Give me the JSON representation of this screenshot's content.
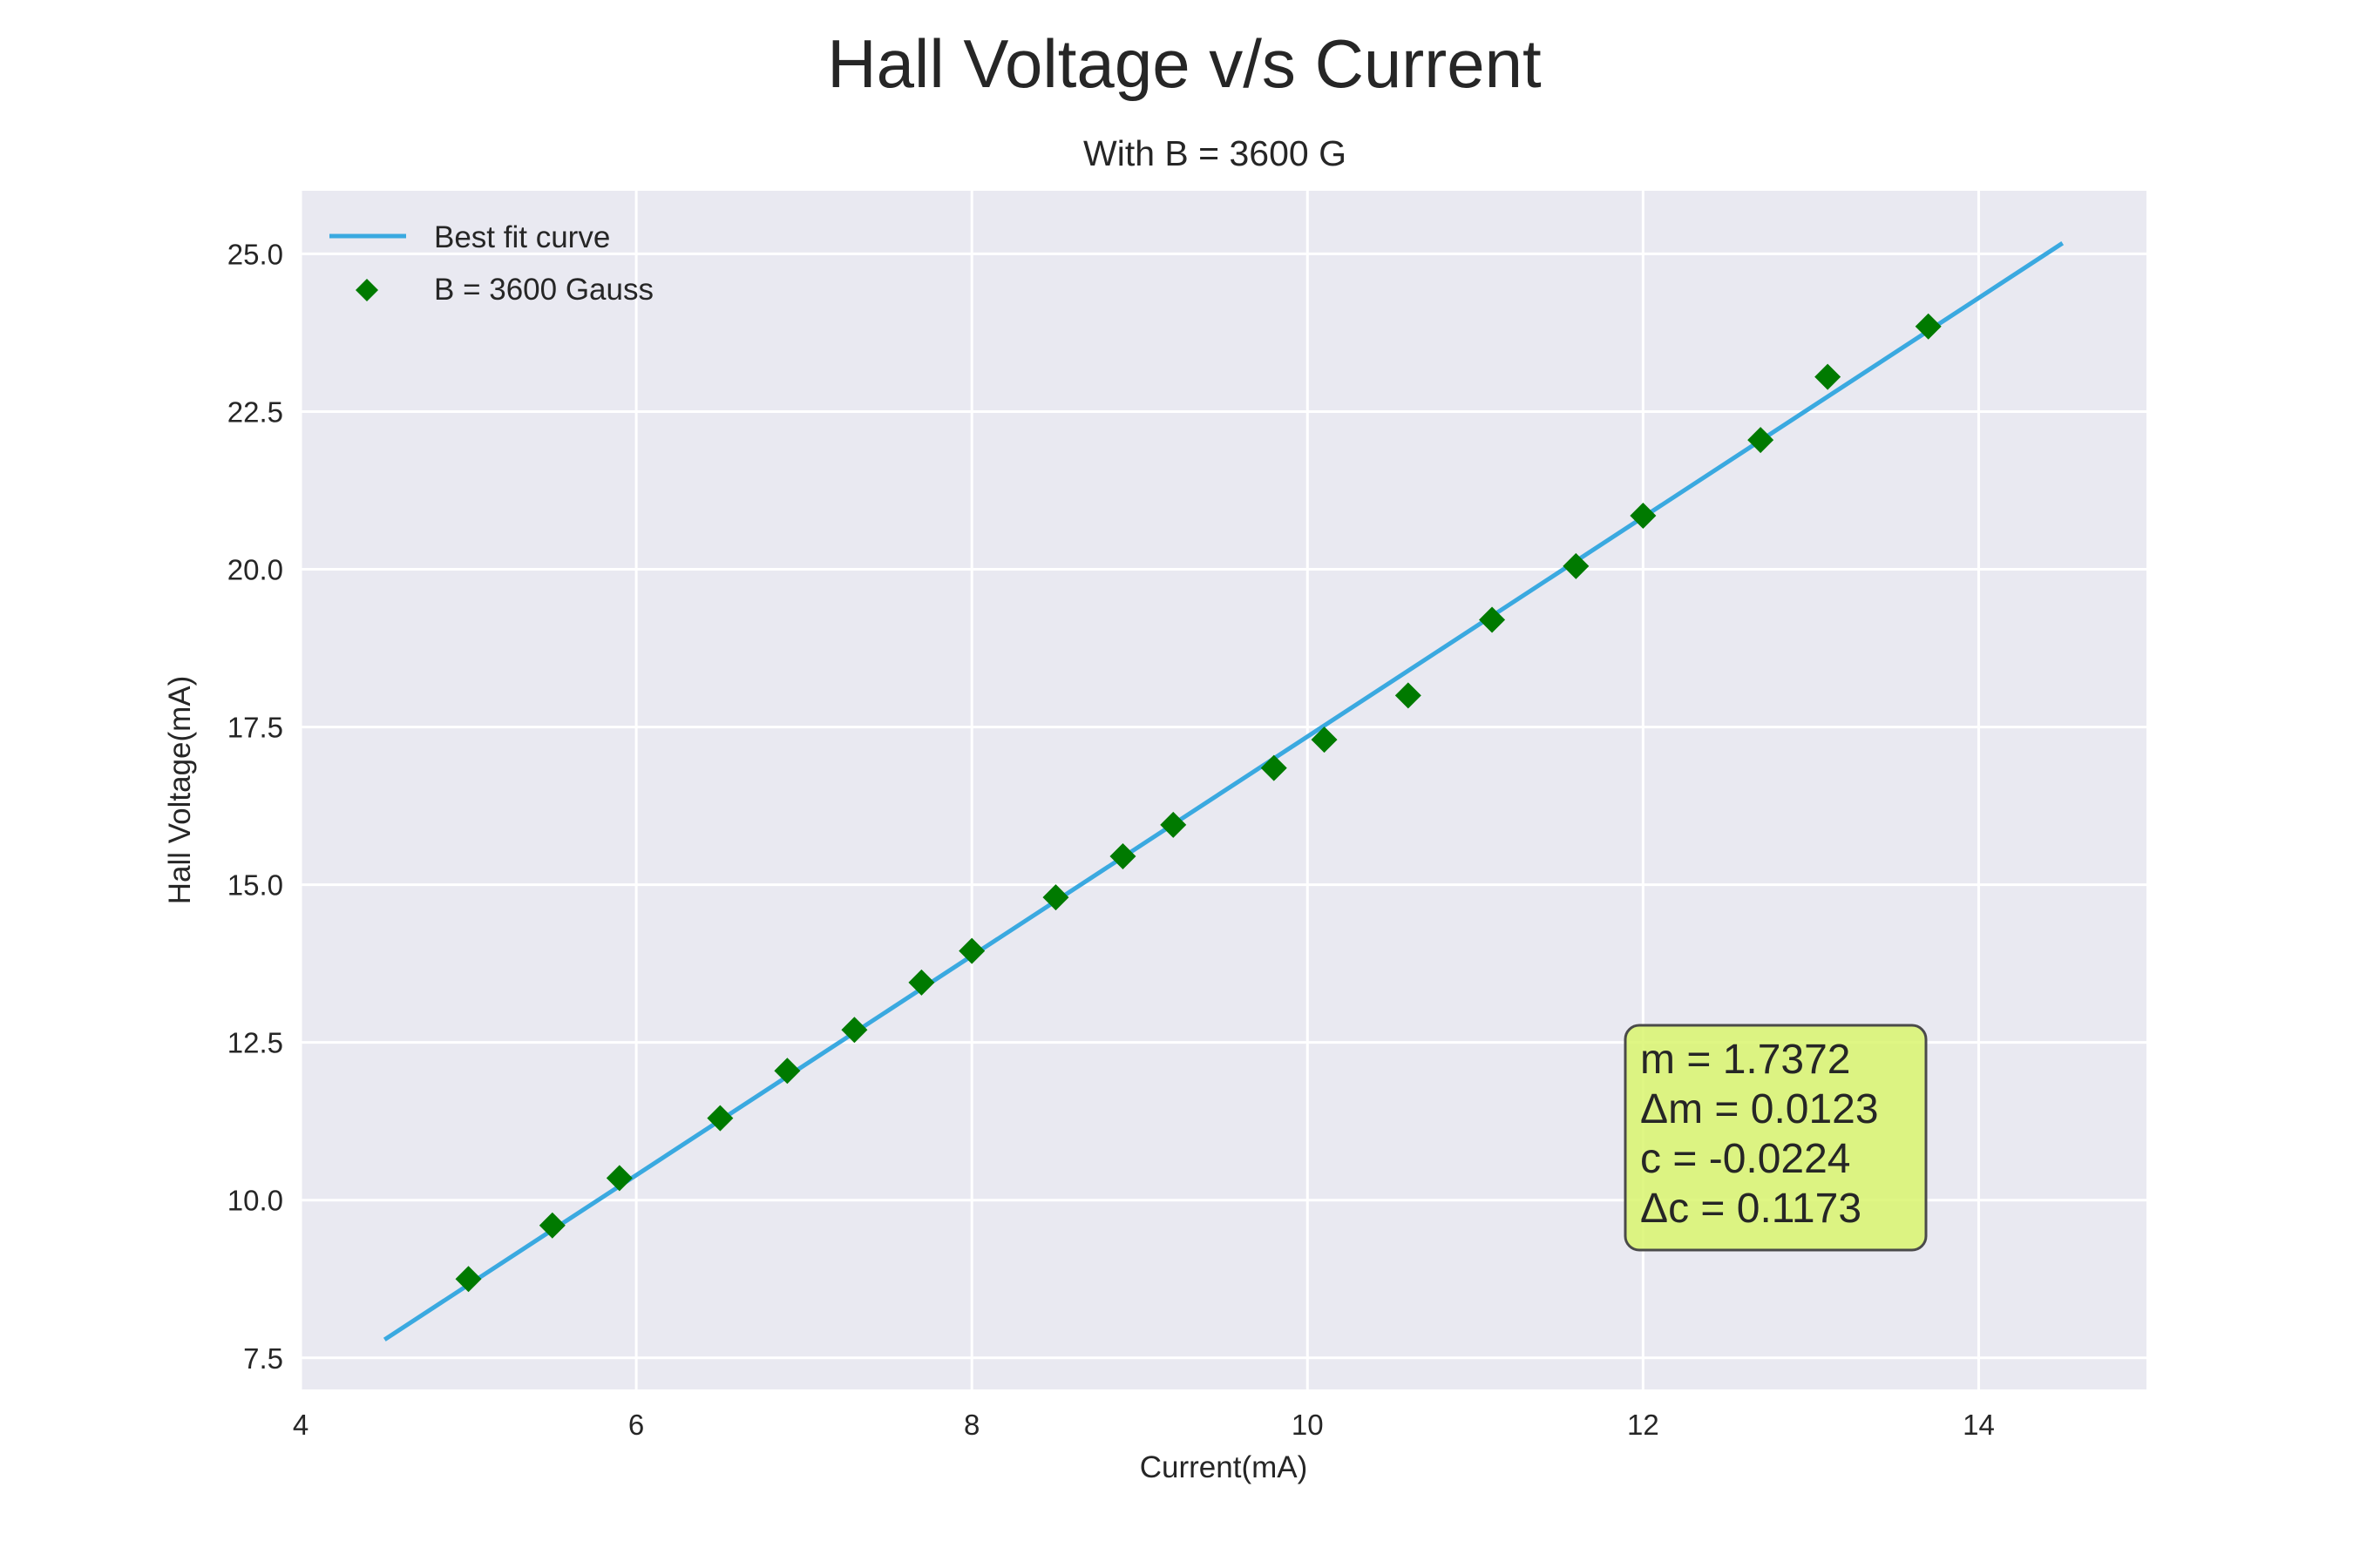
{
  "chart_data": {
    "type": "scatter",
    "suptitle": "Hall Voltage v/s Current",
    "title": "With B = 3600 G",
    "xlabel": "Current(mA)",
    "ylabel": "Hall Voltage(mA)",
    "xlim": [
      4,
      15
    ],
    "ylim": [
      7,
      26
    ],
    "xticks": [
      4,
      6,
      8,
      10,
      12,
      14
    ],
    "xtick_labels": [
      "4",
      "6",
      "8",
      "10",
      "12",
      "14"
    ],
    "yticks": [
      7.5,
      10.0,
      12.5,
      15.0,
      17.5,
      20.0,
      22.5,
      25.0
    ],
    "ytick_labels": [
      "7.5",
      "10.0",
      "12.5",
      "15.0",
      "17.5",
      "20.0",
      "22.5",
      "25.0"
    ],
    "grid": true,
    "legend_position": "top-left",
    "series": [
      {
        "name": "Best fit curve",
        "kind": "line",
        "color": "#3aa9e0",
        "x": [
          4.5,
          14.5
        ],
        "y": [
          7.79,
          25.17
        ]
      },
      {
        "name": "B = 3600 Gauss",
        "kind": "scatter",
        "marker": "diamond",
        "color": "#007a00",
        "x": [
          5.0,
          5.5,
          5.9,
          6.5,
          6.9,
          7.3,
          7.7,
          8.0,
          8.5,
          8.9,
          9.2,
          9.8,
          10.1,
          10.6,
          11.1,
          11.6,
          12.0,
          12.7,
          13.1,
          13.7
        ],
        "y": [
          8.75,
          9.6,
          10.35,
          11.3,
          12.05,
          12.7,
          13.45,
          13.95,
          14.8,
          15.45,
          15.95,
          16.85,
          17.3,
          18.0,
          19.2,
          20.05,
          20.85,
          22.05,
          23.05,
          23.85
        ]
      }
    ],
    "annotation": {
      "lines": [
        "m = 1.7372",
        "Δm = 0.0123",
        "c = -0.0224",
        "Δc = 0.1173"
      ],
      "background": "#d9f56e",
      "border": "#4a4a4a",
      "x": 12.0,
      "y": 12.5
    },
    "colors": {
      "plot_background": "#e9e9f1",
      "grid": "#ffffff"
    }
  }
}
